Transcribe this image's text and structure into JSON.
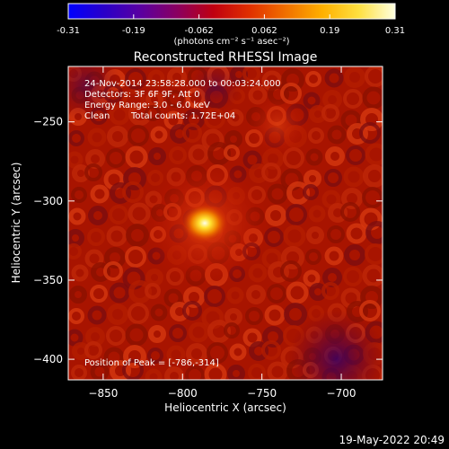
{
  "colorbar": {
    "tick_labels": [
      "-0.31",
      "-0.19",
      "-0.062",
      "0.062",
      "0.19",
      "0.31"
    ],
    "range": [
      -0.31,
      0.31
    ],
    "unit_label": "(photons cm⁻² s⁻¹ asec⁻²)",
    "colormap_stops": [
      "#0000ff",
      "#2a00c8",
      "#5a00a0",
      "#8a0060",
      "#c00010",
      "#e03000",
      "#f07000",
      "#ffb000",
      "#ffe040",
      "#ffffe0"
    ]
  },
  "chart_data": {
    "type": "heatmap",
    "title": "Reconstructed RHESSI Image",
    "xlabel": "Heliocentric X (arcsec)",
    "ylabel": "Heliocentric Y (arcsec)",
    "xlim": [
      -872,
      -674
    ],
    "ylim": [
      -413,
      -215
    ],
    "x_ticks": [
      -850,
      -800,
      -750,
      -700
    ],
    "y_ticks": [
      -250,
      -300,
      -350,
      -400
    ],
    "peak_position": [
      -786,
      -314
    ],
    "annotations": {
      "time_range": "24-Nov-2014 23:58:28.000 to 00:03:24.000",
      "detectors": "Detectors: 3F 6F 9F, Att 0",
      "energy_range": "Energy Range: 3.0 - 6.0 keV",
      "method": "Clean",
      "total_counts": "Total counts: 1.72E+04",
      "peak_label": "Position of Peak = [-786,-314]"
    }
  },
  "footer": {
    "timestamp": "19-May-2022 20:49"
  }
}
